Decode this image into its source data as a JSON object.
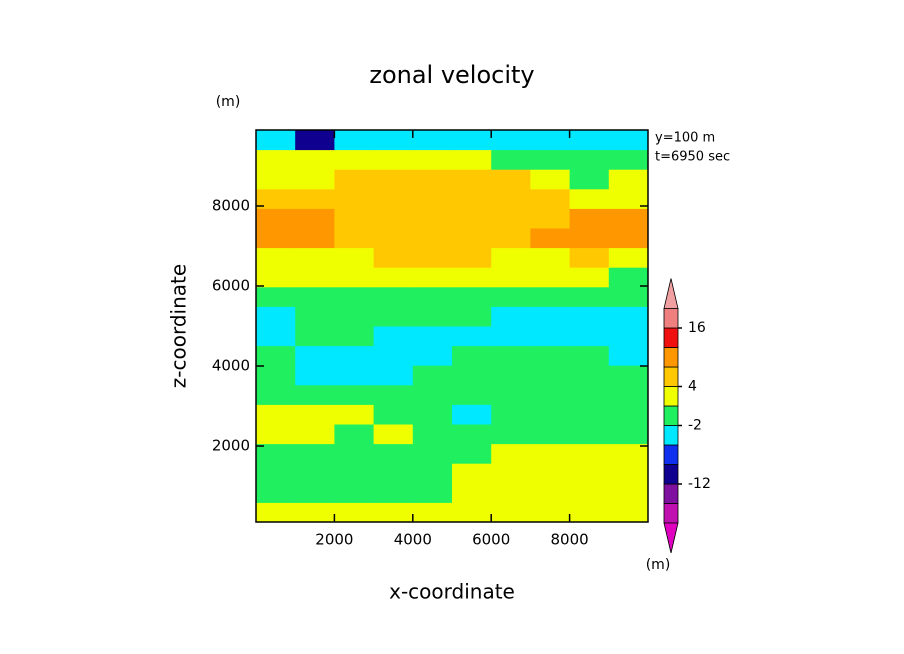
{
  "chart_data": {
    "type": "contour",
    "title": "zonal velocity",
    "y_unit": "(m)",
    "annotations": [
      "y=100 m",
      "t=6950 sec"
    ],
    "xlabel": "x-coordinate",
    "ylabel": "z-coordinate",
    "colorbar_unit": "(m)",
    "xlim": [
      0,
      10000
    ],
    "ylim": [
      100,
      9900
    ],
    "xticks": [
      2000,
      4000,
      6000,
      8000
    ],
    "yticks": [
      2000,
      4000,
      6000,
      8000
    ],
    "x": [
      500,
      1500,
      2500,
      3500,
      4500,
      5500,
      6500,
      7500,
      8500,
      9500
    ],
    "y": [
      345,
      835,
      1325,
      1815,
      2305,
      2795,
      3285,
      3775,
      4265,
      4755,
      5245,
      5735,
      6225,
      6715,
      7205,
      7695,
      8185,
      8675,
      9165,
      9655
    ],
    "z": [
      [
        3,
        3,
        3,
        3,
        3,
        3,
        3,
        3,
        3,
        3
      ],
      [
        0,
        0,
        0,
        0,
        0,
        3,
        3,
        3,
        3,
        3
      ],
      [
        0,
        0,
        0,
        0,
        0,
        3,
        3,
        3,
        3,
        3
      ],
      [
        0,
        0,
        0,
        0,
        0,
        0,
        3,
        3,
        3,
        3
      ],
      [
        3,
        3,
        0,
        3,
        0,
        0,
        0,
        0,
        0,
        0
      ],
      [
        3,
        3,
        3,
        0,
        0,
        -3,
        0,
        0,
        0,
        0
      ],
      [
        0,
        0,
        0,
        0,
        0,
        0,
        0,
        0,
        0,
        0
      ],
      [
        0,
        -3,
        -3,
        -3,
        0,
        0,
        0,
        0,
        0,
        0
      ],
      [
        0,
        -3,
        -3,
        -3,
        -3,
        0,
        0,
        0,
        0,
        -3
      ],
      [
        -3,
        0,
        0,
        -3,
        -3,
        -3,
        -3,
        -3,
        -3,
        -3
      ],
      [
        -3,
        0,
        0,
        0,
        0,
        0,
        -3,
        -3,
        -3,
        -3
      ],
      [
        0,
        0,
        0,
        0,
        0,
        0,
        0,
        0,
        0,
        0
      ],
      [
        3,
        3,
        3,
        3,
        3,
        3,
        3,
        3,
        3,
        0
      ],
      [
        3,
        3,
        3,
        6,
        6,
        6,
        3,
        3,
        6,
        3
      ],
      [
        10,
        10,
        6,
        6,
        6,
        6,
        6,
        10,
        10,
        10
      ],
      [
        10,
        10,
        6,
        6,
        6,
        6,
        6,
        6,
        10,
        10
      ],
      [
        6,
        6,
        6,
        6,
        6,
        6,
        6,
        6,
        3,
        3
      ],
      [
        3,
        3,
        6,
        6,
        6,
        6,
        6,
        3,
        0,
        3
      ],
      [
        3,
        3,
        3,
        3,
        3,
        3,
        0,
        0,
        0,
        0
      ],
      [
        -3,
        -10,
        -3,
        -3,
        -3,
        -3,
        -3,
        -3,
        -3,
        -3
      ]
    ],
    "levels": [
      -20,
      -16,
      -12,
      -8,
      -4,
      -2,
      2,
      4,
      8,
      12,
      16,
      20
    ],
    "colors": [
      "#e000c0",
      "#c010b0",
      "#8010a0",
      "#100090",
      "#1030f0",
      "#00e8ff",
      "#20f060",
      "#f0ff00",
      "#ffc800",
      "#ff9800",
      "#f01010",
      "#f08080",
      "#f0a0a0"
    ],
    "colorbar_ticks": [
      16,
      4,
      -2,
      -12
    ]
  }
}
